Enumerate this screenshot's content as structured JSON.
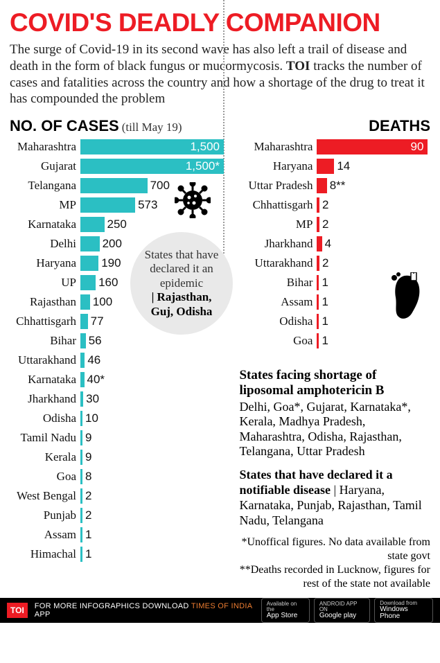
{
  "headline": "COVID'S DEADLY COMPANION",
  "headline_color": "#ed1c24",
  "intro_pre": "The surge of Covid-19 in its second wave has also left a trail of disease and death in the form of black fungus or mucormycosis. ",
  "intro_bold": "TOI",
  "intro_post": " tracks the number of cases and fatalities across the country and how a shortage of the drug to treat it has compounded the problem",
  "cases": {
    "title": "NO. OF CASES",
    "subtitle": "(till May 19)",
    "bar_color": "#2bbfc3",
    "max_value": 1500,
    "track_width": 207,
    "inside_threshold": 1200,
    "rows": [
      {
        "label": "Maharashtra",
        "value": 1500,
        "display": "1,500"
      },
      {
        "label": "Gujarat",
        "value": 1500,
        "display": "1,500*"
      },
      {
        "label": "Telangana",
        "value": 700,
        "display": "700"
      },
      {
        "label": "MP",
        "value": 573,
        "display": "573"
      },
      {
        "label": "Karnataka",
        "value": 250,
        "display": "250"
      },
      {
        "label": "Delhi",
        "value": 200,
        "display": "200"
      },
      {
        "label": "Haryana",
        "value": 190,
        "display": "190"
      },
      {
        "label": "UP",
        "value": 160,
        "display": "160"
      },
      {
        "label": "Rajasthan",
        "value": 100,
        "display": "100"
      },
      {
        "label": "Chhattisgarh",
        "value": 77,
        "display": "77"
      },
      {
        "label": "Bihar",
        "value": 56,
        "display": "56"
      },
      {
        "label": "Uttarakhand",
        "value": 46,
        "display": "46"
      },
      {
        "label": "Karnataka",
        "value": 40,
        "display": "40*"
      },
      {
        "label": "Jharkhand",
        "value": 30,
        "display": "30"
      },
      {
        "label": "Odisha",
        "value": 10,
        "display": "10"
      },
      {
        "label": "Tamil Nadu",
        "value": 9,
        "display": "9"
      },
      {
        "label": "Kerala",
        "value": 9,
        "display": "9"
      },
      {
        "label": "Goa",
        "value": 8,
        "display": "8"
      },
      {
        "label": "West Bengal",
        "value": 2,
        "display": "2"
      },
      {
        "label": "Punjab",
        "value": 2,
        "display": "2"
      },
      {
        "label": "Assam",
        "value": 1,
        "display": "1"
      },
      {
        "label": "Himachal",
        "value": 1,
        "display": "1"
      }
    ]
  },
  "deaths": {
    "title": "DEATHS",
    "bar_color": "#ed1c24",
    "max_value": 90,
    "track_width": 160,
    "inside_threshold": 80,
    "rows": [
      {
        "label": "Maharashtra",
        "value": 90,
        "display": "90"
      },
      {
        "label": "Haryana",
        "value": 14,
        "display": "14"
      },
      {
        "label": "Uttar Pradesh",
        "value": 8,
        "display": "8**"
      },
      {
        "label": "Chhattisgarh",
        "value": 2,
        "display": "2"
      },
      {
        "label": "MP",
        "value": 2,
        "display": "2"
      },
      {
        "label": "Jharkhand",
        "value": 4,
        "display": "4"
      },
      {
        "label": "Uttarakhand",
        "value": 2,
        "display": "2"
      },
      {
        "label": "Bihar",
        "value": 1,
        "display": "1"
      },
      {
        "label": "Assam",
        "value": 1,
        "display": "1"
      },
      {
        "label": "Odisha",
        "value": 1,
        "display": "1"
      },
      {
        "label": "Goa",
        "value": 1,
        "display": "1"
      }
    ]
  },
  "callout": {
    "line1": "States that have declared it an epidemic",
    "line2": "| Rajasthan, Guj, Odisha"
  },
  "section1": {
    "title": "States facing shortage of liposomal amphotericin B",
    "body": "Delhi, Goa*, Gujarat, Karnataka*, Kerala, Madhya Pradesh, Maharashtra, Odisha, Rajasthan, Telangana, Uttar Pradesh"
  },
  "section2": {
    "title": "States that have declared it a notifiable disease",
    "body": " | Haryana, Karnataka, Punjab, Rajasthan, Tamil Nadu, Telangana"
  },
  "footnote1": "*Unoffical figures. No data available from state govt",
  "footnote2": "**Deaths recorded in Lucknow, figures for rest of the state not available",
  "footer": {
    "badge": "TOI",
    "text_pre": "FOR MORE  INFOGRAPHICS DOWNLOAD ",
    "text_orange": "TIMES OF INDIA",
    "text_post": "  APP",
    "stores": [
      {
        "top": "Available on the",
        "bottom": "App Store"
      },
      {
        "top": "ANDROID APP ON",
        "bottom": "Google play"
      },
      {
        "top": "Download from",
        "bottom": "Windows Phone"
      }
    ]
  }
}
